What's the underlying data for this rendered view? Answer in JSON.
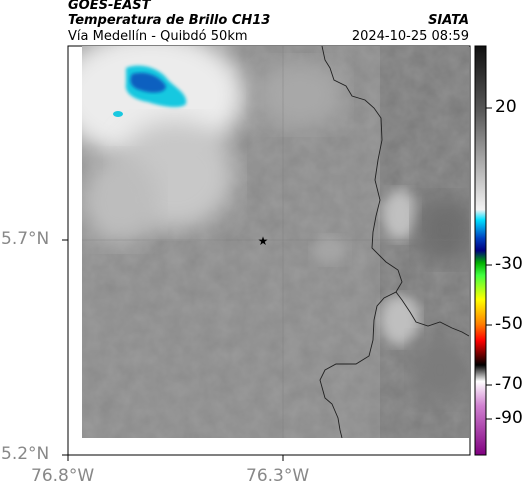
{
  "header": {
    "left_title": "GOES-EAST",
    "left_subtitle": "Temperatura de Brillo CH13",
    "left_location": "Vía Medellín - Quibdó 50km",
    "right_title": "SIATA",
    "right_datetime": "2024-10-25 08:59"
  },
  "map": {
    "x_ticks": [
      "76.8°W",
      "76.3°W"
    ],
    "y_ticks": [
      "5.7°N",
      "5.2°N"
    ],
    "marker": "star-icon",
    "colors": {
      "cloud_cyan": "#19c8e0",
      "cloud_blue": "#1060c0",
      "border": "#202020"
    }
  },
  "colorbar": {
    "labels": [
      "20",
      "-30",
      "-50",
      "-70",
      "-90"
    ]
  }
}
